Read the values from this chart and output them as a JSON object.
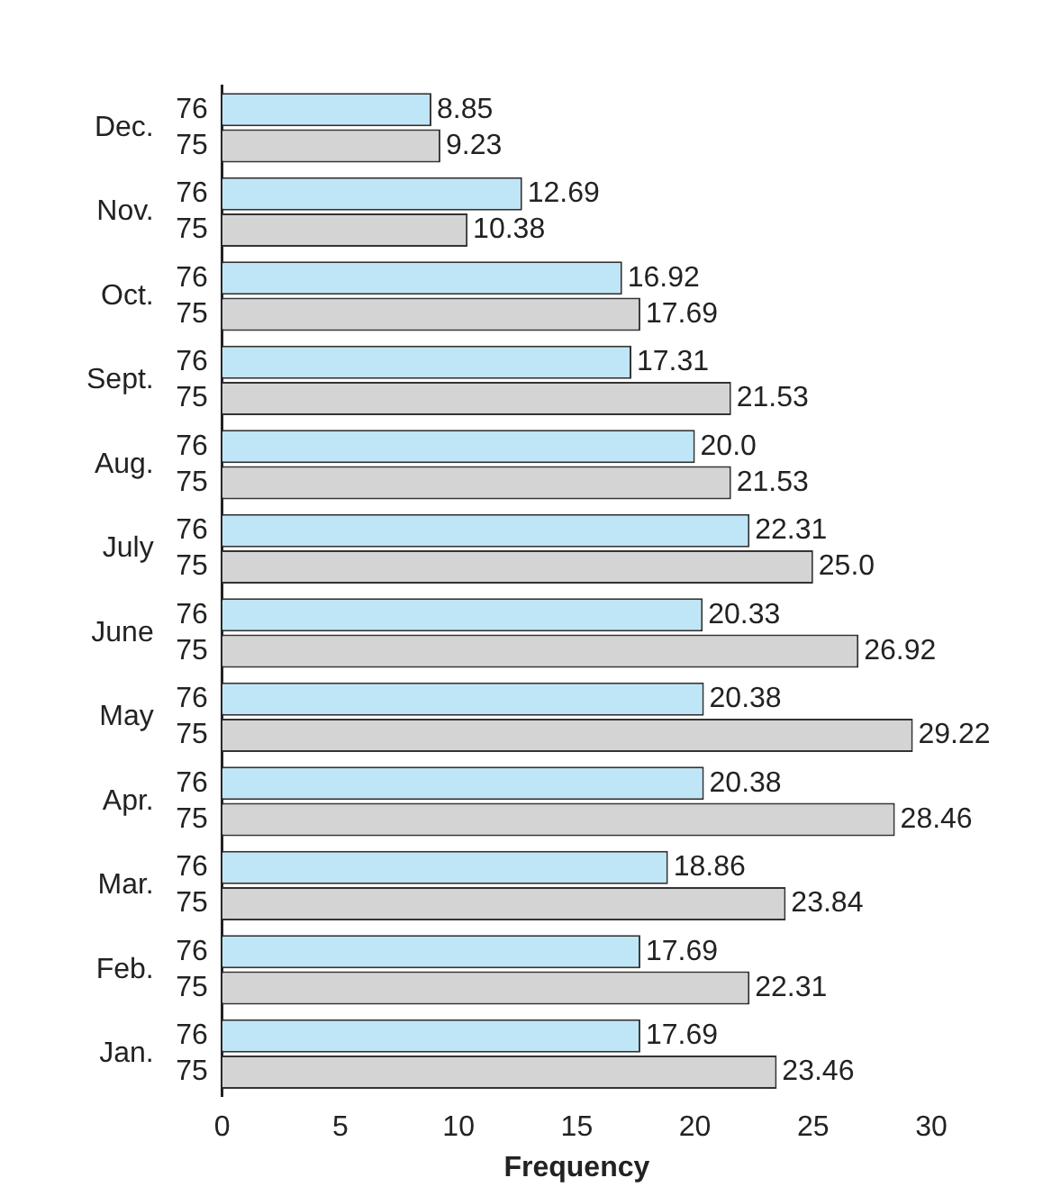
{
  "chart_data": {
    "type": "bar",
    "orientation": "horizontal",
    "xlabel": "Frequency",
    "categories": [
      "Dec.",
      "Nov.",
      "Oct.",
      "Sept.",
      "Aug.",
      "July",
      "June",
      "May",
      "Apr.",
      "Mar.",
      "Feb.",
      "Jan."
    ],
    "series": [
      {
        "name": "76",
        "color": "#bfe6f7",
        "values": [
          8.85,
          12.69,
          16.92,
          17.31,
          20.0,
          22.31,
          20.33,
          20.38,
          20.38,
          18.86,
          17.69,
          17.69
        ],
        "value_labels": [
          "8.85",
          "12.69",
          "16.92",
          "17.31",
          "20.0",
          "22.31",
          "20.33",
          "20.38",
          "20.38",
          "18.86",
          "17.69",
          "17.69"
        ]
      },
      {
        "name": "75",
        "color": "#d4d4d4",
        "values": [
          9.23,
          10.38,
          17.69,
          21.53,
          21.53,
          25.0,
          26.92,
          29.22,
          28.46,
          23.84,
          22.31,
          23.46
        ],
        "value_labels": [
          "9.23",
          "10.38",
          "17.69",
          "21.53",
          "21.53",
          "25.0",
          "26.92",
          "29.22",
          "28.46",
          "23.84",
          "22.31",
          "23.46"
        ]
      }
    ],
    "xlim": [
      0,
      30
    ],
    "xticks": [
      0,
      5,
      10,
      15,
      20,
      25,
      30
    ],
    "grid": false,
    "legend": false
  }
}
